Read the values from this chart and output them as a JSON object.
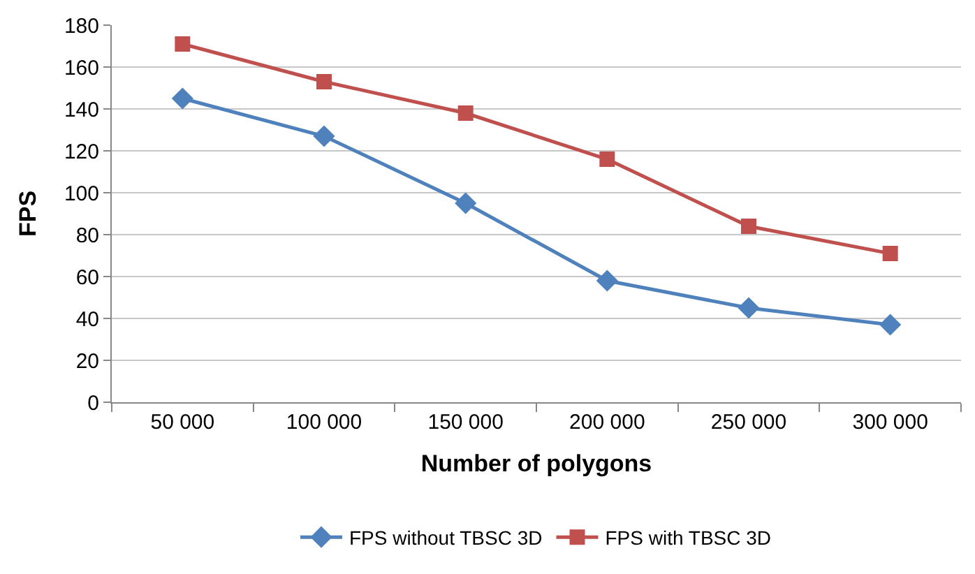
{
  "chart_data": {
    "type": "line",
    "xlabel": "Number of polygons",
    "ylabel": "FPS",
    "categories": [
      "50 000",
      "100 000",
      "150 000",
      "200 000",
      "250 000",
      "300 000"
    ],
    "series": [
      {
        "name": "FPS without TBSC 3D",
        "color": "#4f81bd",
        "marker": "diamond",
        "values": [
          145,
          127,
          95,
          58,
          45,
          37
        ]
      },
      {
        "name": "FPS with TBSC 3D",
        "color": "#c0504d",
        "marker": "square",
        "values": [
          171,
          153,
          138,
          116,
          84,
          71
        ]
      }
    ],
    "ylim": [
      0,
      180
    ],
    "yticks": [
      0,
      20,
      40,
      60,
      80,
      100,
      120,
      140,
      160,
      180
    ],
    "grid": "y",
    "legend": "bottom",
    "line_style": "solid"
  }
}
